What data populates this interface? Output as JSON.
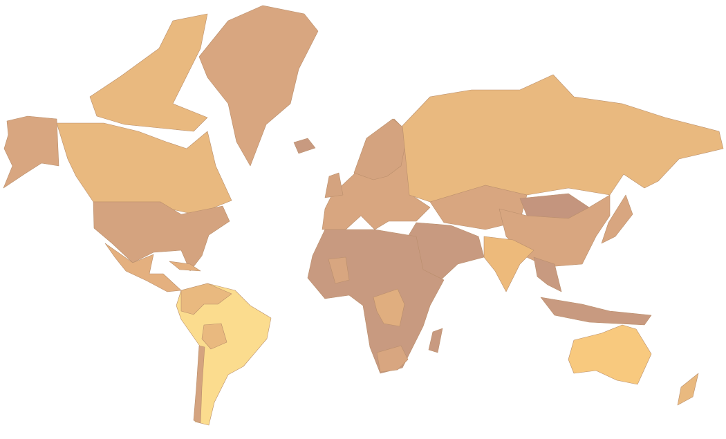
{
  "map": {
    "background": "#ffffff",
    "border_color": "#b98e6b",
    "regions": {
      "alaska": "#D8A680",
      "canada": "#E9B97F",
      "arctic_islands": "#E9B97F",
      "greenland": "#D8A680",
      "usa": "#D4A37F",
      "mexico_central_america": "#E4B07F",
      "caribbean": "#E4B07F",
      "south_america": "#FBDC8E",
      "colombia_venezuela": "#E9B97F",
      "bolivia": "#E9B97F",
      "chile": "#D4A37F",
      "europe": "#D8A680",
      "scandinavia": "#D4A37F",
      "iceland": "#C89A80",
      "uk": "#D4A37F",
      "russia": "#E9B97F",
      "central_asia": "#D8A680",
      "mongolia": "#C4957E",
      "china": "#D8A680",
      "india": "#EDBA7B",
      "middle_east": "#C89A80",
      "southeast_asia": "#C89A80",
      "indonesia": "#C89A80",
      "japan": "#D8A680",
      "africa": "#C89A80",
      "congo": "#E0AE7F",
      "mali": "#D8A680",
      "south_africa": "#D8A680",
      "madagascar": "#C89A80",
      "australia": "#F8C97E",
      "new_zealand": "#E9B97F"
    }
  }
}
